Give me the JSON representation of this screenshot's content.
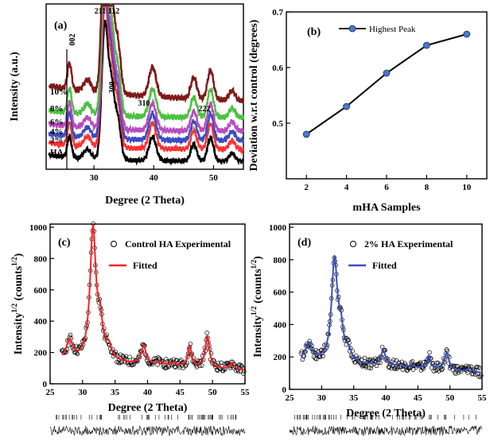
{
  "chart_data": [
    {
      "type": "line",
      "panel": "(a)",
      "xlabel": "Degree (2 Theta)",
      "ylabel": "Intensity (a.u.)",
      "xlim": [
        22,
        55
      ],
      "x_ticks": [
        30,
        40,
        50
      ],
      "series": [
        {
          "name": "HA",
          "color": "#000000"
        },
        {
          "name": "2%",
          "color": "#ff3030"
        },
        {
          "name": "4%",
          "color": "#3a4cc0"
        },
        {
          "name": "6%",
          "color": "#b84cc0"
        },
        {
          "name": "8%",
          "color": "#4cc040"
        },
        {
          "name": "10%",
          "color": "#801818"
        }
      ],
      "peak_labels": [
        "002",
        "211",
        "112",
        "300",
        "310",
        "222"
      ]
    },
    {
      "type": "line",
      "panel": "(b)",
      "xlabel": "mHA Samples",
      "ylabel": "Deviation w.r.t control (degrees)",
      "xlim": [
        1,
        11
      ],
      "ylim": [
        0.4,
        0.7
      ],
      "x_ticks": [
        2,
        4,
        6,
        8,
        10
      ],
      "y_ticks": [
        0.5,
        0.6,
        0.7
      ],
      "legend": "top-left",
      "series": [
        {
          "name": "Highest Peak",
          "color": "#000000",
          "marker_color": "#4a78d0",
          "x": [
            2,
            4,
            6,
            8,
            10
          ],
          "y": [
            0.48,
            0.53,
            0.59,
            0.64,
            0.66
          ]
        }
      ]
    },
    {
      "type": "scatter",
      "panel": "(c)",
      "xlabel": "Degree (2 Theta)",
      "ylabel_main": "Intensity",
      "ylabel_sup": "1/2",
      "ylabel_unit": " (counts",
      "ylabel_unit_sup": "1/2",
      "ylabel_close": ")",
      "xlim": [
        25,
        55
      ],
      "ylim": [
        0,
        1020
      ],
      "x_ticks": [
        25,
        30,
        35,
        40,
        45,
        50,
        55
      ],
      "y_ticks": [
        0,
        200,
        400,
        600,
        800,
        1000
      ],
      "legend": "top-right",
      "series": [
        {
          "name": "Control HA Experimental",
          "marker": "open-circle",
          "color": "#000000"
        },
        {
          "name": "Fitted",
          "color": "#ff2020"
        }
      ]
    },
    {
      "type": "scatter",
      "panel": "(d)",
      "xlabel": "Degree (2 Theta)",
      "ylabel_main": "Intensity",
      "ylabel_sup": "1/2",
      "ylabel_unit": " (counts",
      "ylabel_unit_sup": "1/2",
      "ylabel_close": ")",
      "xlim": [
        25,
        55
      ],
      "ylim": [
        0,
        1020
      ],
      "x_ticks": [
        25,
        30,
        35,
        40,
        45,
        50,
        55
      ],
      "y_ticks": [
        0,
        200,
        400,
        600,
        800,
        1000
      ],
      "legend": "top-right",
      "series": [
        {
          "name": "2% HA Experimental",
          "marker": "open-circle",
          "color": "#000000"
        },
        {
          "name": "Fitted",
          "color": "#3a50c0"
        }
      ]
    }
  ]
}
